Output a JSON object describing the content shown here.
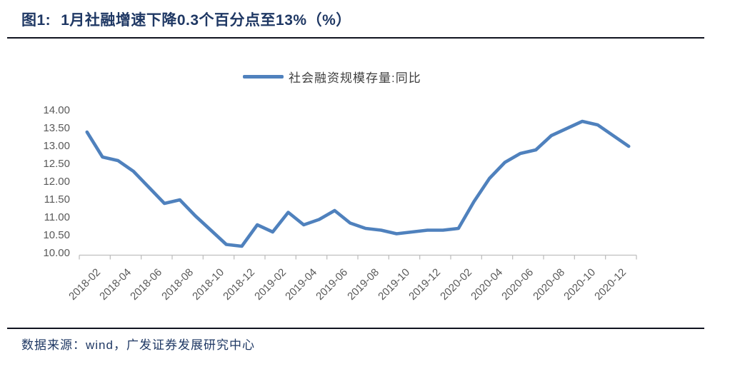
{
  "figure": {
    "title_prefix": "图1:",
    "title_text": "1月社融增速下降0.3个百分点至13%（%）",
    "source_text": "数据来源：wind，广发证券发展研究中心"
  },
  "legend": {
    "label": "社会融资规模存量:同比"
  },
  "colors": {
    "line": "#4f81bd",
    "title_text": "#1f3864",
    "axis_line": "#bfbfbf",
    "axis_text": "#595959",
    "rule": "#10131f"
  },
  "chart_data": {
    "type": "line",
    "title": "1月社融增速下降0.3个百分点至13%（%）",
    "xlabel": "",
    "ylabel": "",
    "ylim": [
      10.0,
      14.0
    ],
    "ytick_step": 0.5,
    "grid": false,
    "legend_position": "top-center",
    "y_tick_labels": [
      "14.00",
      "13.50",
      "13.00",
      "12.50",
      "12.00",
      "11.50",
      "11.00",
      "10.50",
      "10.00"
    ],
    "x_tick_labels": [
      "2018-02",
      "2018-04",
      "2018-06",
      "2018-08",
      "2018-10",
      "2018-12",
      "2019-02",
      "2019-04",
      "2019-06",
      "2019-08",
      "2019-10",
      "2019-12",
      "2020-02",
      "2020-04",
      "2020-06",
      "2020-08",
      "2020-10",
      "2020-12"
    ],
    "x": [
      "2018-02",
      "2018-03",
      "2018-04",
      "2018-05",
      "2018-06",
      "2018-07",
      "2018-08",
      "2018-09",
      "2018-10",
      "2018-11",
      "2018-12",
      "2019-01",
      "2019-02",
      "2019-03",
      "2019-04",
      "2019-05",
      "2019-06",
      "2019-07",
      "2019-08",
      "2019-09",
      "2019-10",
      "2019-11",
      "2019-12",
      "2020-01",
      "2020-02",
      "2020-03",
      "2020-04",
      "2020-05",
      "2020-06",
      "2020-07",
      "2020-08",
      "2020-09",
      "2020-10",
      "2020-11",
      "2020-12",
      "2021-01"
    ],
    "series": [
      {
        "name": "社会融资规模存量:同比",
        "values": [
          13.4,
          12.7,
          12.6,
          12.3,
          11.85,
          11.4,
          11.5,
          11.05,
          10.65,
          10.25,
          10.2,
          10.8,
          10.6,
          11.15,
          10.8,
          10.95,
          11.2,
          10.85,
          10.7,
          10.65,
          10.55,
          10.6,
          10.65,
          10.65,
          10.7,
          11.45,
          12.1,
          12.55,
          12.8,
          12.9,
          13.3,
          13.5,
          13.7,
          13.6,
          13.3,
          13.0
        ]
      }
    ]
  }
}
